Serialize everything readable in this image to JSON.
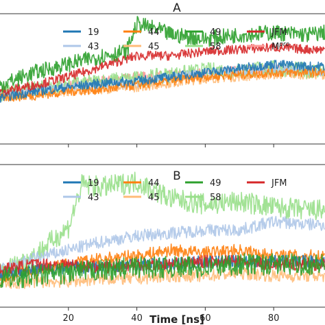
{
  "chart_data": [
    {
      "type": "line",
      "panel": "A",
      "title": "A",
      "x_range_ns": [
        0,
        95
      ],
      "grid": false,
      "legend_placement": "top-right",
      "legend": [
        "19",
        "44",
        "49",
        "JFM",
        "43",
        "45",
        "58",
        "M"
      ],
      "legend_super": "pro",
      "series": [
        {
          "name": "19",
          "color": "#1f77b4",
          "points": [
            [
              0,
              3.2
            ],
            [
              10,
              3.5
            ],
            [
              20,
              3.7
            ],
            [
              30,
              3.9
            ],
            [
              40,
              4.0
            ],
            [
              50,
              4.2
            ],
            [
              60,
              4.4
            ],
            [
              70,
              4.6
            ],
            [
              80,
              4.8
            ],
            [
              90,
              4.7
            ],
            [
              95,
              4.7
            ]
          ]
        },
        {
          "name": "44",
          "color": "#ff7f0e",
          "points": [
            [
              0,
              3.2
            ],
            [
              10,
              3.3
            ],
            [
              20,
              3.5
            ],
            [
              30,
              3.6
            ],
            [
              40,
              3.8
            ],
            [
              50,
              4.0
            ],
            [
              60,
              4.2
            ],
            [
              70,
              4.3
            ],
            [
              80,
              4.4
            ],
            [
              90,
              4.4
            ],
            [
              95,
              4.4
            ]
          ]
        },
        {
          "name": "49",
          "color": "#2ca02c",
          "points": [
            [
              0,
              3.8
            ],
            [
              10,
              4.4
            ],
            [
              20,
              4.8
            ],
            [
              30,
              5.2
            ],
            [
              37,
              5.4
            ],
            [
              40,
              6.7
            ],
            [
              45,
              6.5
            ],
            [
              50,
              6.2
            ],
            [
              60,
              6.0
            ],
            [
              70,
              6.2
            ],
            [
              80,
              6.3
            ],
            [
              90,
              6.2
            ],
            [
              95,
              6.3
            ]
          ]
        },
        {
          "name": "JFM",
          "color": "#d62728",
          "points": [
            [
              0,
              3.5
            ],
            [
              10,
              3.8
            ],
            [
              20,
              4.2
            ],
            [
              30,
              4.7
            ],
            [
              40,
              5.2
            ],
            [
              50,
              5.2
            ],
            [
              60,
              5.4
            ],
            [
              70,
              5.5
            ],
            [
              80,
              5.6
            ],
            [
              90,
              5.5
            ],
            [
              95,
              5.5
            ]
          ]
        },
        {
          "name": "43",
          "color": "#aec7e8",
          "points": [
            [
              0,
              3.3
            ],
            [
              10,
              3.5
            ],
            [
              20,
              3.7
            ],
            [
              30,
              3.8
            ],
            [
              40,
              3.9
            ],
            [
              50,
              4.2
            ],
            [
              60,
              4.4
            ],
            [
              70,
              4.5
            ],
            [
              80,
              4.6
            ],
            [
              90,
              4.5
            ],
            [
              95,
              4.4
            ]
          ]
        },
        {
          "name": "45",
          "color": "#ffbb78",
          "points": [
            [
              0,
              3.2
            ],
            [
              10,
              3.4
            ],
            [
              20,
              3.5
            ],
            [
              30,
              3.6
            ],
            [
              40,
              3.7
            ],
            [
              50,
              3.9
            ],
            [
              60,
              4.1
            ],
            [
              70,
              4.2
            ],
            [
              80,
              4.3
            ],
            [
              90,
              4.3
            ],
            [
              95,
              4.3
            ]
          ]
        },
        {
          "name": "58",
          "color": "#98df8a",
          "points": [
            [
              0,
              3.4
            ],
            [
              10,
              3.6
            ],
            [
              20,
              3.8
            ],
            [
              30,
              4.0
            ],
            [
              40,
              4.1
            ],
            [
              50,
              4.3
            ],
            [
              60,
              4.5
            ],
            [
              70,
              4.5
            ],
            [
              80,
              4.6
            ],
            [
              90,
              4.5
            ],
            [
              95,
              4.5
            ]
          ]
        },
        {
          "name": "Mpro",
          "color": "#ff9896",
          "points": [
            [
              0,
              3.4
            ],
            [
              10,
              3.6
            ],
            [
              20,
              3.8
            ],
            [
              30,
              4.0
            ],
            [
              40,
              4.2
            ],
            [
              50,
              4.3
            ],
            [
              60,
              4.4
            ],
            [
              70,
              4.5
            ],
            [
              80,
              4.6
            ],
            [
              90,
              4.5
            ],
            [
              95,
              4.5
            ]
          ]
        }
      ]
    },
    {
      "type": "line",
      "panel": "B",
      "title": "B",
      "x_range_ns": [
        0,
        95
      ],
      "xlabel": "Time [ns]",
      "xticks": [
        20,
        40,
        60,
        80
      ],
      "grid": false,
      "legend_placement": "top-right",
      "legend": [
        "19",
        "44",
        "49",
        "JFM",
        "43",
        "45",
        "58"
      ],
      "series": [
        {
          "name": "19",
          "color": "#1f77b4",
          "points": [
            [
              0,
              3.8
            ],
            [
              10,
              3.9
            ],
            [
              20,
              4.0
            ],
            [
              30,
              4.0
            ],
            [
              40,
              4.1
            ],
            [
              50,
              4.1
            ],
            [
              60,
              4.2
            ],
            [
              70,
              4.2
            ],
            [
              80,
              4.2
            ],
            [
              90,
              4.2
            ],
            [
              95,
              4.2
            ]
          ]
        },
        {
          "name": "44",
          "color": "#ff7f0e",
          "points": [
            [
              0,
              3.6
            ],
            [
              10,
              3.9
            ],
            [
              20,
              4.1
            ],
            [
              30,
              4.3
            ],
            [
              40,
              4.4
            ],
            [
              50,
              4.6
            ],
            [
              60,
              4.5
            ],
            [
              70,
              4.6
            ],
            [
              80,
              4.4
            ],
            [
              90,
              4.4
            ],
            [
              95,
              4.4
            ]
          ]
        },
        {
          "name": "49",
          "color": "#2ca02c",
          "points": [
            [
              0,
              3.6
            ],
            [
              10,
              3.7
            ],
            [
              20,
              3.8
            ],
            [
              30,
              3.9
            ],
            [
              40,
              4.0
            ],
            [
              50,
              4.0
            ],
            [
              60,
              4.0
            ],
            [
              70,
              4.1
            ],
            [
              80,
              4.1
            ],
            [
              90,
              4.1
            ],
            [
              95,
              4.1
            ]
          ]
        },
        {
          "name": "JFM",
          "color": "#d62728",
          "points": [
            [
              0,
              3.9
            ],
            [
              10,
              4.1
            ],
            [
              20,
              4.1
            ],
            [
              30,
              4.0
            ],
            [
              40,
              4.1
            ],
            [
              50,
              4.1
            ],
            [
              60,
              4.2
            ],
            [
              70,
              4.2
            ],
            [
              80,
              4.1
            ],
            [
              90,
              4.1
            ],
            [
              95,
              4.1
            ]
          ]
        },
        {
          "name": "43",
          "color": "#aec7e8",
          "points": [
            [
              0,
              3.9
            ],
            [
              10,
              4.3
            ],
            [
              20,
              4.6
            ],
            [
              30,
              4.9
            ],
            [
              40,
              5.1
            ],
            [
              50,
              5.2
            ],
            [
              60,
              5.3
            ],
            [
              70,
              5.3
            ],
            [
              80,
              5.6
            ],
            [
              90,
              5.5
            ],
            [
              95,
              5.5
            ]
          ]
        },
        {
          "name": "45",
          "color": "#ffbb78",
          "points": [
            [
              0,
              3.4
            ],
            [
              10,
              3.5
            ],
            [
              20,
              3.5
            ],
            [
              30,
              3.6
            ],
            [
              40,
              3.6
            ],
            [
              50,
              3.7
            ],
            [
              60,
              3.7
            ],
            [
              70,
              3.8
            ],
            [
              80,
              3.7
            ],
            [
              90,
              3.7
            ],
            [
              95,
              3.7
            ]
          ]
        },
        {
          "name": "58",
          "color": "#98df8a",
          "points": [
            [
              0,
              3.8
            ],
            [
              10,
              4.4
            ],
            [
              20,
              5.4
            ],
            [
              24,
              6.9
            ],
            [
              30,
              6.8
            ],
            [
              40,
              7.0
            ],
            [
              50,
              6.4
            ],
            [
              60,
              6.2
            ],
            [
              70,
              6.3
            ],
            [
              80,
              6.1
            ],
            [
              90,
              6.0
            ],
            [
              95,
              6.0
            ]
          ]
        }
      ]
    }
  ]
}
